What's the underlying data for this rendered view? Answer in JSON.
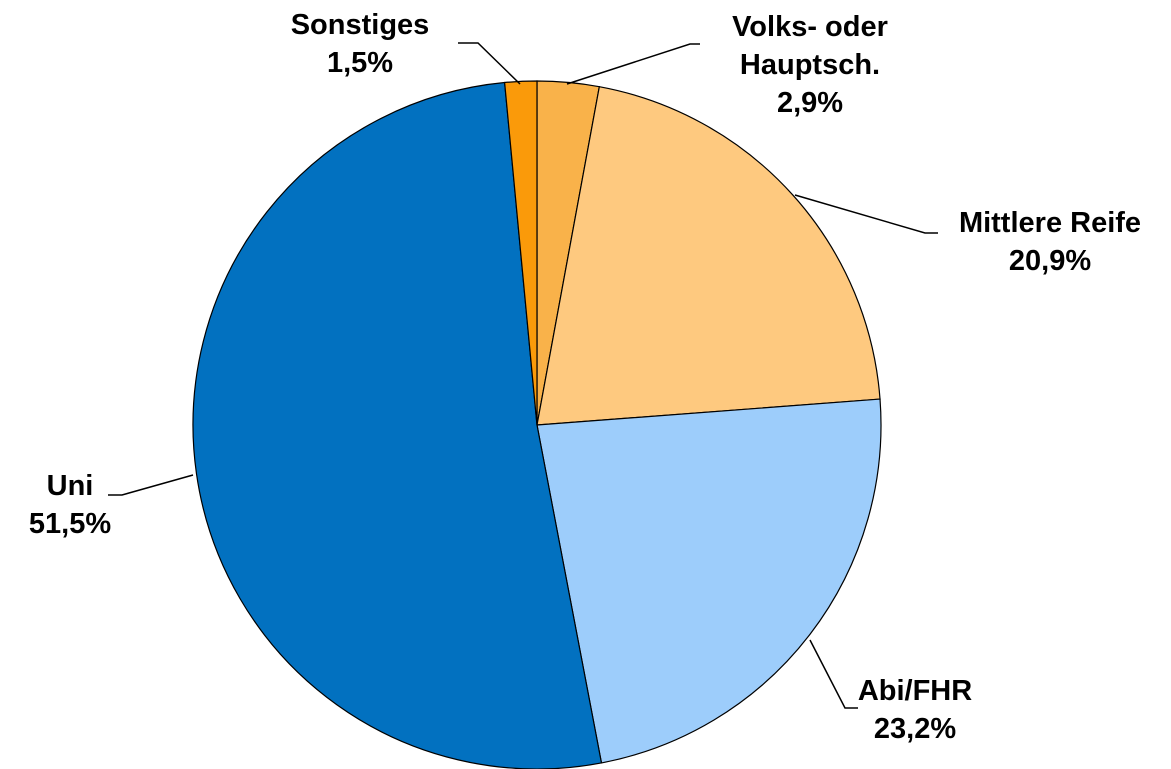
{
  "chart_data": {
    "type": "pie",
    "categories": [
      "Volks- oder Hauptsch.",
      "Mittlere Reife",
      "Abi/FHR",
      "Uni",
      "Sonstiges"
    ],
    "values": [
      2.9,
      20.9,
      23.2,
      51.5,
      1.5
    ],
    "value_labels": [
      "2,9%",
      "20,9%",
      "23,2%",
      "51,5%",
      "1,5%"
    ],
    "colors": [
      "#f9b24a",
      "#fec97f",
      "#9dcdfb",
      "#0271c0",
      "#fa9a0a"
    ]
  }
}
